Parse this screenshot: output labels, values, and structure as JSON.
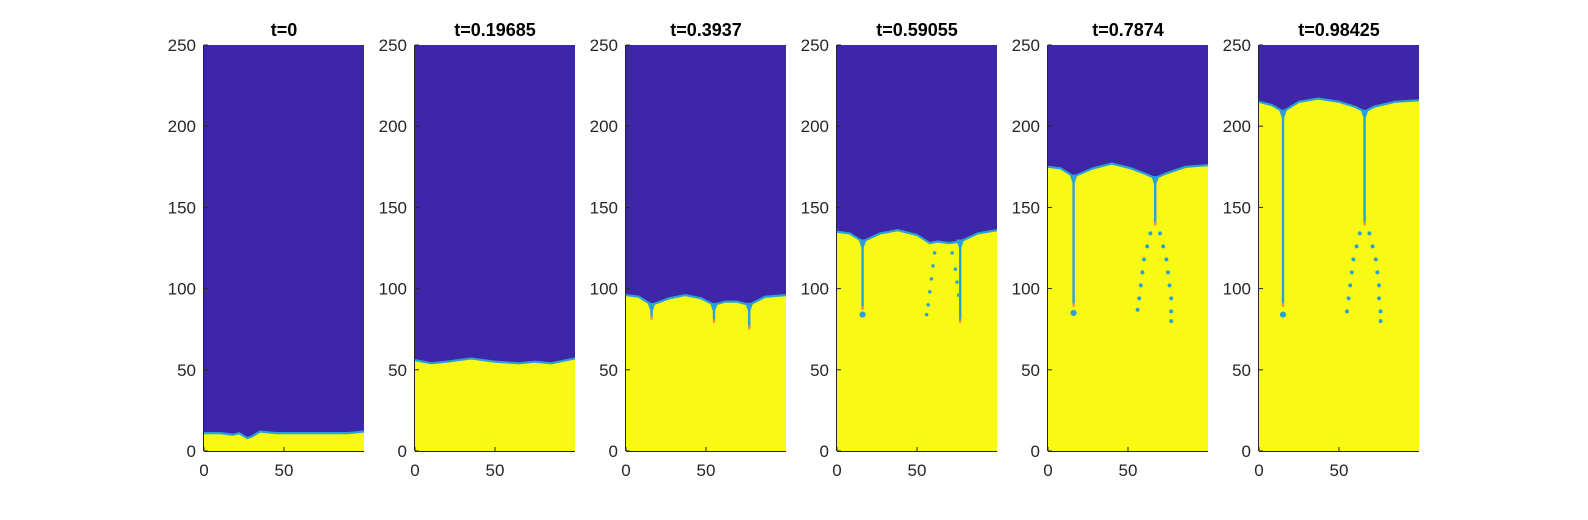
{
  "figure": {
    "colors": {
      "phase_top": "#3d26a8",
      "phase_bottom": "#f9fa14",
      "interface": "#2aa1d6",
      "interface_tip": "#f38b46",
      "axis": "#262626"
    }
  },
  "chart_data": [
    {
      "type": "heatmap",
      "title": "t=0",
      "t": 0,
      "xlim": [
        0,
        100
      ],
      "ylim": [
        0,
        250
      ],
      "xticks": [
        0,
        50
      ],
      "yticks": [
        0,
        50,
        100,
        150,
        200,
        250
      ],
      "xtick_labels": [
        "0",
        "50"
      ],
      "ytick_labels": [
        "0",
        "50",
        "100",
        "150",
        "200",
        "250"
      ],
      "interface": {
        "x": [
          0,
          10,
          18,
          22,
          27,
          30,
          35,
          45,
          60,
          75,
          90,
          100
        ],
        "y": [
          11,
          11,
          10,
          11,
          8,
          9,
          12,
          11,
          11,
          11,
          11,
          12
        ]
      },
      "fingers": [],
      "droplets": []
    },
    {
      "type": "heatmap",
      "title": "t=0.19685",
      "t": 0.19685,
      "xlim": [
        0,
        100
      ],
      "ylim": [
        0,
        250
      ],
      "xticks": [
        0,
        50
      ],
      "yticks": [
        0,
        50,
        100,
        150,
        200,
        250
      ],
      "xtick_labels": [
        "0",
        "50"
      ],
      "ytick_labels": [
        "0",
        "50",
        "100",
        "150",
        "200",
        "250"
      ],
      "interface": {
        "x": [
          0,
          10,
          20,
          35,
          50,
          65,
          75,
          85,
          100
        ],
        "y": [
          56,
          54,
          55,
          57,
          55,
          54,
          55,
          54,
          57
        ]
      },
      "fingers": [],
      "droplets": []
    },
    {
      "type": "heatmap",
      "title": "t=0.3937",
      "t": 0.3937,
      "xlim": [
        0,
        100
      ],
      "ylim": [
        0,
        250
      ],
      "xticks": [
        0,
        50
      ],
      "yticks": [
        0,
        50,
        100,
        150,
        200,
        250
      ],
      "xtick_labels": [
        "0",
        "50"
      ],
      "ytick_labels": [
        "0",
        "50",
        "100",
        "150",
        "200",
        "250"
      ],
      "interface": {
        "x": [
          0,
          8,
          16,
          27,
          37,
          47,
          55,
          62,
          69,
          77,
          87,
          100
        ],
        "y": [
          96,
          95,
          90,
          94,
          96,
          94,
          90,
          92,
          92,
          90,
          95,
          96
        ]
      },
      "fingers": [
        {
          "x": 16,
          "y_top": 90,
          "y_bottom": 82
        },
        {
          "x": 55,
          "y_top": 90,
          "y_bottom": 80
        },
        {
          "x": 77,
          "y_top": 90,
          "y_bottom": 76
        }
      ],
      "droplets": []
    },
    {
      "type": "heatmap",
      "title": "t=0.59055",
      "t": 0.59055,
      "xlim": [
        0,
        100
      ],
      "ylim": [
        0,
        250
      ],
      "xticks": [
        0,
        50
      ],
      "yticks": [
        0,
        50,
        100,
        150,
        200,
        250
      ],
      "xtick_labels": [
        "0",
        "50"
      ],
      "ytick_labels": [
        "0",
        "50",
        "100",
        "150",
        "200",
        "250"
      ],
      "interface": {
        "x": [
          0,
          8,
          16,
          27,
          38,
          50,
          58,
          63,
          70,
          77,
          88,
          100
        ],
        "y": [
          135,
          134,
          129,
          134,
          136,
          133,
          128,
          129,
          128,
          129,
          134,
          136
        ]
      },
      "fingers": [
        {
          "x": 16,
          "y_top": 129,
          "y_bottom": 88
        },
        {
          "x": 77,
          "y_top": 129,
          "y_bottom": 80
        }
      ],
      "droplets": [
        {
          "x": 16,
          "y": 84,
          "r": 1.4
        },
        {
          "x": 61,
          "y": 122,
          "r": 0.8
        },
        {
          "x": 60,
          "y": 114,
          "r": 0.8
        },
        {
          "x": 59,
          "y": 106,
          "r": 0.8
        },
        {
          "x": 58,
          "y": 98,
          "r": 0.8
        },
        {
          "x": 57,
          "y": 90,
          "r": 0.8
        },
        {
          "x": 56,
          "y": 84,
          "r": 0.8
        },
        {
          "x": 72,
          "y": 122,
          "r": 0.8
        },
        {
          "x": 74,
          "y": 112,
          "r": 0.8
        },
        {
          "x": 75,
          "y": 104,
          "r": 0.8
        },
        {
          "x": 76,
          "y": 96,
          "r": 0.8
        }
      ]
    },
    {
      "type": "heatmap",
      "title": "t=0.7874",
      "t": 0.7874,
      "xlim": [
        0,
        100
      ],
      "ylim": [
        0,
        250
      ],
      "xticks": [
        0,
        50
      ],
      "yticks": [
        0,
        50,
        100,
        150,
        200,
        250
      ],
      "xtick_labels": [
        "0",
        "50"
      ],
      "ytick_labels": [
        "0",
        "50",
        "100",
        "150",
        "200",
        "250"
      ],
      "interface": {
        "x": [
          0,
          8,
          16,
          28,
          40,
          52,
          60,
          67,
          74,
          86,
          100
        ],
        "y": [
          175,
          174,
          169,
          174,
          177,
          174,
          171,
          168,
          171,
          175,
          176
        ]
      },
      "fingers": [
        {
          "x": 16,
          "y_top": 169,
          "y_bottom": 90
        },
        {
          "x": 67,
          "y_top": 168,
          "y_bottom": 140
        }
      ],
      "droplets": [
        {
          "x": 16,
          "y": 85,
          "r": 1.4
        },
        {
          "x": 64,
          "y": 134,
          "r": 0.9
        },
        {
          "x": 62,
          "y": 126,
          "r": 0.9
        },
        {
          "x": 60,
          "y": 118,
          "r": 0.9
        },
        {
          "x": 59,
          "y": 110,
          "r": 0.9
        },
        {
          "x": 58,
          "y": 102,
          "r": 0.9
        },
        {
          "x": 57,
          "y": 94,
          "r": 0.9
        },
        {
          "x": 56,
          "y": 87,
          "r": 0.9
        },
        {
          "x": 70,
          "y": 134,
          "r": 0.9
        },
        {
          "x": 72,
          "y": 126,
          "r": 0.9
        },
        {
          "x": 74,
          "y": 118,
          "r": 0.9
        },
        {
          "x": 75,
          "y": 110,
          "r": 0.9
        },
        {
          "x": 76,
          "y": 102,
          "r": 0.9
        },
        {
          "x": 77,
          "y": 94,
          "r": 0.9
        },
        {
          "x": 77,
          "y": 86,
          "r": 0.9
        },
        {
          "x": 77,
          "y": 80,
          "r": 0.9
        }
      ]
    },
    {
      "type": "heatmap",
      "title": "t=0.98425",
      "t": 0.98425,
      "xlim": [
        0,
        100
      ],
      "ylim": [
        0,
        250
      ],
      "xticks": [
        0,
        50
      ],
      "yticks": [
        0,
        50,
        100,
        150,
        200,
        250
      ],
      "xtick_labels": [
        "0",
        "50"
      ],
      "ytick_labels": [
        "0",
        "50",
        "100",
        "150",
        "200",
        "250"
      ],
      "interface": {
        "x": [
          0,
          8,
          15,
          25,
          37,
          50,
          60,
          66,
          72,
          85,
          100
        ],
        "y": [
          215,
          213,
          209,
          215,
          217,
          215,
          212,
          209,
          212,
          215,
          216
        ]
      },
      "fingers": [
        {
          "x": 15,
          "y_top": 209,
          "y_bottom": 90
        },
        {
          "x": 66,
          "y_top": 209,
          "y_bottom": 140
        }
      ],
      "droplets": [
        {
          "x": 15,
          "y": 84,
          "r": 1.4
        },
        {
          "x": 63,
          "y": 134,
          "r": 0.9
        },
        {
          "x": 61,
          "y": 126,
          "r": 0.9
        },
        {
          "x": 59,
          "y": 118,
          "r": 0.9
        },
        {
          "x": 58,
          "y": 110,
          "r": 0.9
        },
        {
          "x": 57,
          "y": 102,
          "r": 0.9
        },
        {
          "x": 56,
          "y": 94,
          "r": 0.9
        },
        {
          "x": 55,
          "y": 86,
          "r": 0.9
        },
        {
          "x": 69,
          "y": 134,
          "r": 0.9
        },
        {
          "x": 71,
          "y": 126,
          "r": 0.9
        },
        {
          "x": 73,
          "y": 118,
          "r": 0.9
        },
        {
          "x": 74,
          "y": 110,
          "r": 0.9
        },
        {
          "x": 75,
          "y": 102,
          "r": 0.9
        },
        {
          "x": 75,
          "y": 94,
          "r": 0.9
        },
        {
          "x": 76,
          "y": 86,
          "r": 0.9
        },
        {
          "x": 76,
          "y": 80,
          "r": 0.9
        }
      ]
    }
  ]
}
